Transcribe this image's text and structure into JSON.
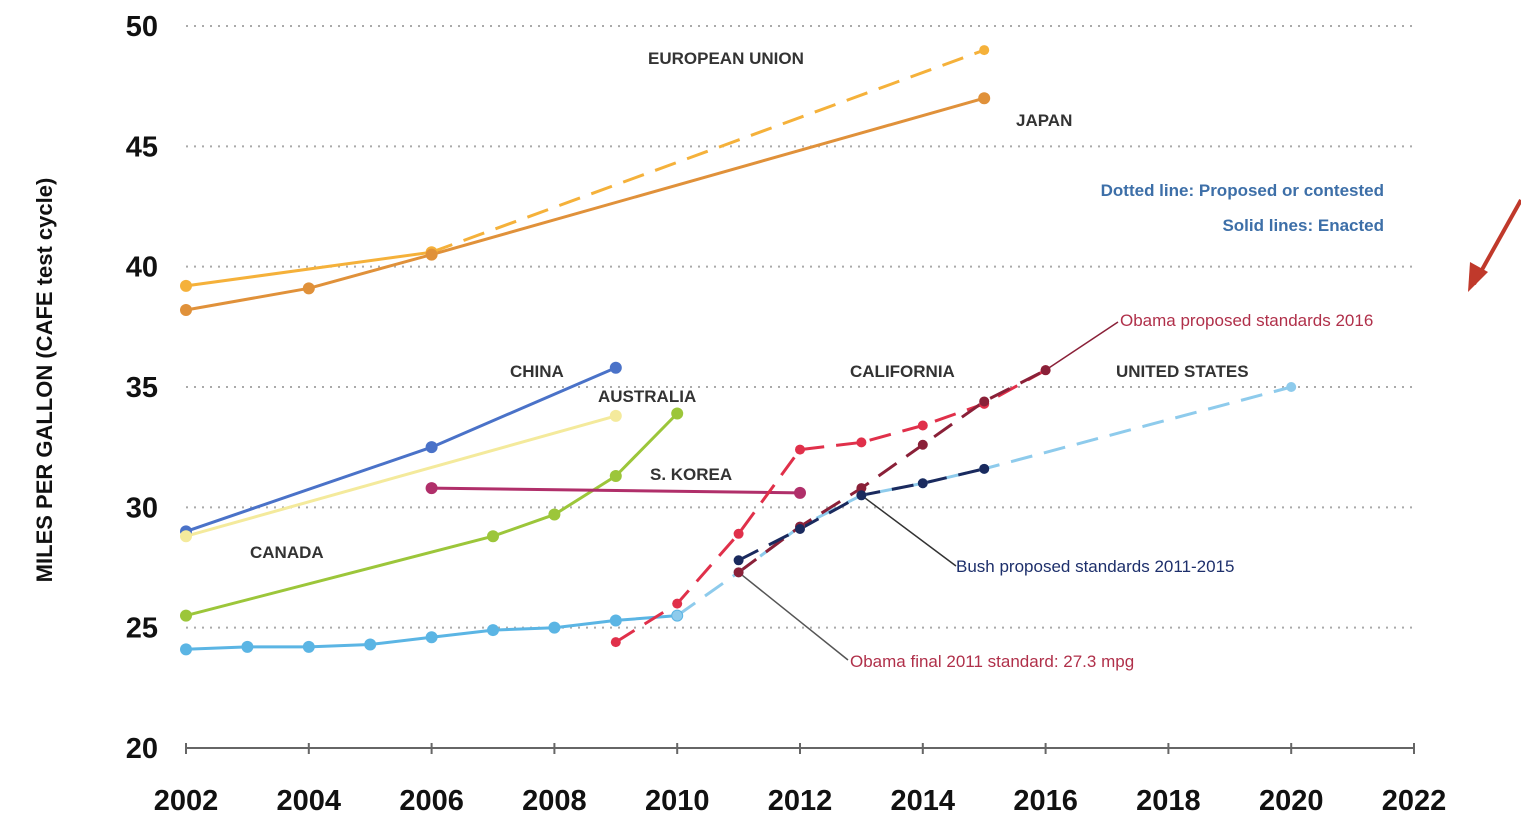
{
  "chart_data": {
    "type": "line",
    "title": "",
    "xlabel": "",
    "ylabel": "MILES PER GALLON (CAFE test cycle)",
    "xlim": [
      2002,
      2022
    ],
    "ylim": [
      20,
      50
    ],
    "x_ticks": [
      2002,
      2004,
      2006,
      2008,
      2010,
      2012,
      2014,
      2016,
      2018,
      2020,
      2022
    ],
    "y_ticks": [
      20,
      25,
      30,
      35,
      40,
      45,
      50
    ],
    "grid": "horizontal dotted",
    "series": [
      {
        "name": "EUROPEAN UNION",
        "color": "#f5b13a",
        "style": "solid",
        "points": [
          [
            2002,
            39.2
          ],
          [
            2006,
            40.6
          ]
        ]
      },
      {
        "name": "EUROPEAN UNION",
        "color": "#f5b13a",
        "style": "dashed",
        "points": [
          [
            2006,
            40.6
          ],
          [
            2015,
            49.0
          ]
        ]
      },
      {
        "name": "JAPAN",
        "color": "#e0913a",
        "style": "solid",
        "points": [
          [
            2002,
            38.2
          ],
          [
            2004,
            39.1
          ],
          [
            2006,
            40.5
          ],
          [
            2015,
            47.0
          ]
        ]
      },
      {
        "name": "CHINA",
        "color": "#4a72c8",
        "style": "solid",
        "points": [
          [
            2002,
            29.0
          ],
          [
            2006,
            32.5
          ],
          [
            2009,
            35.8
          ]
        ]
      },
      {
        "name": "CANADA",
        "color": "#f4ea9c",
        "style": "solid",
        "points": [
          [
            2002,
            28.8
          ],
          [
            2009,
            33.8
          ]
        ]
      },
      {
        "name": "AUSTRALIA",
        "color": "#9cc63a",
        "style": "solid",
        "points": [
          [
            2002,
            25.5
          ],
          [
            2007,
            28.8
          ],
          [
            2008,
            29.7
          ],
          [
            2009,
            31.3
          ],
          [
            2010,
            33.9
          ]
        ]
      },
      {
        "name": "S. KOREA",
        "color": "#b02f6a",
        "style": "solid",
        "points": [
          [
            2006,
            30.8
          ],
          [
            2012,
            30.6
          ]
        ]
      },
      {
        "name": "UNITED STATES",
        "color": "#5bb5e4",
        "style": "solid",
        "points": [
          [
            2002,
            24.1
          ],
          [
            2003,
            24.2
          ],
          [
            2004,
            24.2
          ],
          [
            2005,
            24.3
          ],
          [
            2006,
            24.6
          ],
          [
            2007,
            24.9
          ],
          [
            2008,
            25.0
          ],
          [
            2009,
            25.3
          ],
          [
            2010,
            25.5
          ]
        ]
      },
      {
        "name": "UNITED STATES",
        "color": "#8ecbec",
        "style": "dashed",
        "points": [
          [
            2010,
            25.5
          ],
          [
            2011,
            27.3
          ],
          [
            2012,
            29.2
          ],
          [
            2013,
            30.5
          ],
          [
            2014,
            31.0
          ],
          [
            2015,
            31.6
          ],
          [
            2020,
            35.0
          ]
        ]
      },
      {
        "name": "CALIFORNIA",
        "color": "#e0304a",
        "style": "dashed",
        "points": [
          [
            2009,
            24.4
          ],
          [
            2010,
            26.0
          ],
          [
            2011,
            28.9
          ],
          [
            2012,
            32.4
          ],
          [
            2013,
            32.7
          ],
          [
            2014,
            33.4
          ],
          [
            2015,
            34.3
          ],
          [
            2016,
            35.7
          ]
        ]
      },
      {
        "name": "Obama proposed standards 2016",
        "color": "#8a2038",
        "style": "dashed",
        "points": [
          [
            2011,
            27.3
          ],
          [
            2012,
            29.2
          ],
          [
            2013,
            30.8
          ],
          [
            2014,
            32.6
          ],
          [
            2015,
            34.4
          ],
          [
            2016,
            35.7
          ]
        ]
      },
      {
        "name": "Bush proposed standards 2011-2015",
        "color": "#1a2a5e",
        "style": "dashed",
        "points": [
          [
            2011,
            27.8
          ],
          [
            2012,
            29.1
          ],
          [
            2013,
            30.5
          ],
          [
            2014,
            31.0
          ],
          [
            2015,
            31.6
          ]
        ]
      }
    ],
    "labels": {
      "eu": "EUROPEAN UNION",
      "japan": "JAPAN",
      "china": "CHINA",
      "australia": "AUSTRALIA",
      "skorea": "S. KOREA",
      "canada": "CANADA",
      "california": "CALIFORNIA",
      "us": "UNITED STATES"
    },
    "notes": {
      "dotted": "Dotted line: Proposed or contested",
      "solid": "Solid lines: Enacted"
    },
    "annotations": {
      "obama_proposed": "Obama proposed standards 2016",
      "bush_proposed": "Bush proposed standards 2011-2015",
      "obama_final": "Obama final 2011 standard: 27.3 mpg"
    },
    "colors": {
      "grid": "#aaaaaa",
      "arrow": "#c0392b"
    }
  }
}
